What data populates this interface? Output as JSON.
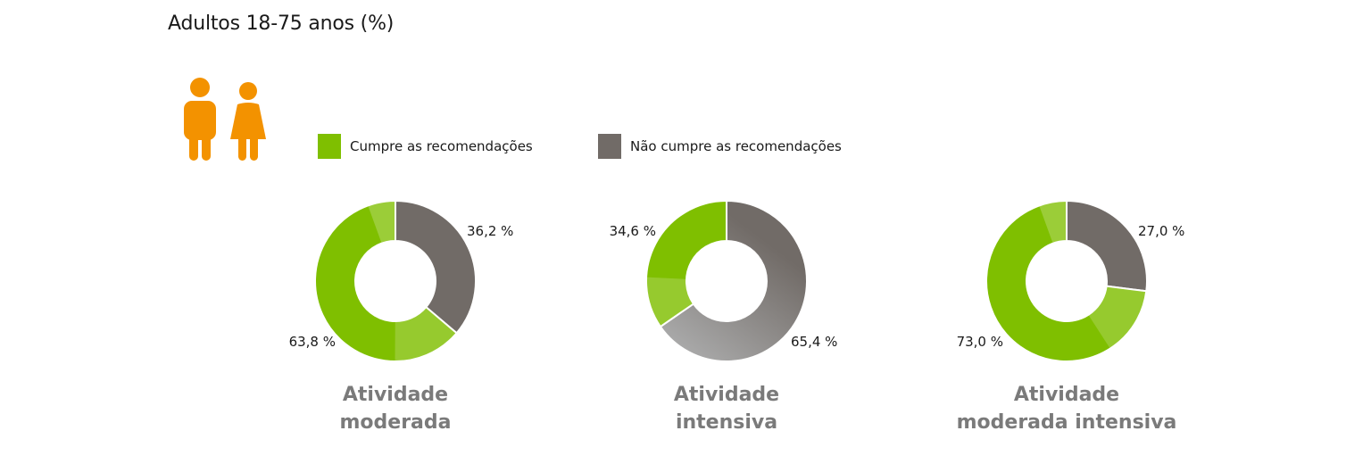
{
  "title": "Adultos 18-75 anos (%)",
  "icon": {
    "name": "adults-male-female-icon",
    "color": "#f39200"
  },
  "legend": [
    {
      "label": "Cumpre as recomendações",
      "color": "#7fbf00"
    },
    {
      "label": "Não cumpre as recomendações",
      "color": "#716b67"
    }
  ],
  "chart_data": [
    {
      "type": "pie",
      "title_lines": [
        "Atividade",
        "moderada"
      ],
      "categories": [
        "Não cumpre as recomendações",
        "Cumpre as recomendações"
      ],
      "values": [
        36.2,
        63.8
      ],
      "labels": [
        "36,2 %",
        "63,8 %"
      ],
      "colors": [
        "#716b67",
        "#7fbf00"
      ],
      "donut": true
    },
    {
      "type": "pie",
      "title_lines": [
        "Atividade",
        "intensiva"
      ],
      "categories": [
        "Não cumpre as recomendações",
        "Cumpre as recomendações"
      ],
      "values": [
        65.4,
        34.6
      ],
      "labels": [
        "65,4 %",
        "34,6 %"
      ],
      "colors": [
        "#716b67",
        "#7fbf00"
      ],
      "donut": true
    },
    {
      "type": "pie",
      "title_lines": [
        "Atividade",
        "moderada intensiva"
      ],
      "categories": [
        "Não cumpre as recomendações",
        "Cumpre as recomendações"
      ],
      "values": [
        27.0,
        73.0
      ],
      "labels": [
        "27,0 %",
        "73,0 %"
      ],
      "colors": [
        "#716b67",
        "#7fbf00"
      ],
      "donut": true
    }
  ]
}
